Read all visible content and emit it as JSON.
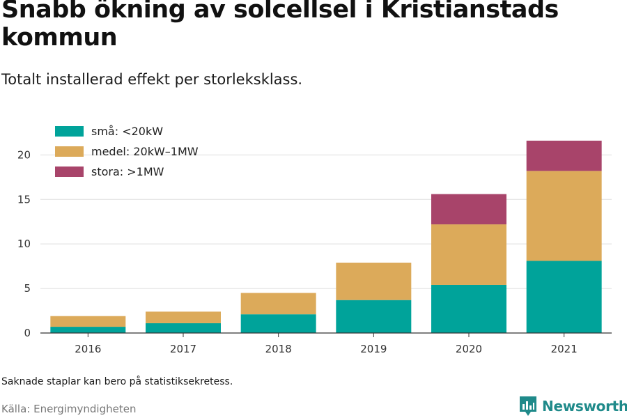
{
  "title": "Snabb ökning av solcellsel i Kristianstads kommun",
  "subtitle": "Totalt installerad effekt per storleksklass.",
  "note": "Saknade staplar kan bero på statistiksekretess.",
  "source": "Källa: Energimyndigheten",
  "brand": {
    "name": "Newsworthy",
    "icon": "bar-chart-logo-icon",
    "color": "#1f8a8a"
  },
  "chart_data": {
    "type": "bar",
    "stacked": true,
    "categories": [
      "2016",
      "2017",
      "2018",
      "2019",
      "2020",
      "2021"
    ],
    "series": [
      {
        "name": "små: <20kW",
        "color": "#00a39a",
        "values": [
          0.7,
          1.1,
          2.1,
          3.7,
          5.4,
          8.1
        ]
      },
      {
        "name": "medel: 20kW–1MW",
        "color": "#dcaa5a",
        "values": [
          1.2,
          1.3,
          2.4,
          4.2,
          6.8,
          10.1
        ]
      },
      {
        "name": "stora: >1MW",
        "color": "#a8446a",
        "values": [
          null,
          null,
          null,
          null,
          3.4,
          3.4
        ]
      }
    ],
    "yticks": [
      0,
      5,
      10,
      15,
      20
    ],
    "ylim": [
      0,
      23
    ],
    "grid": true,
    "legend": "top-left",
    "xlabel": "",
    "ylabel": ""
  }
}
